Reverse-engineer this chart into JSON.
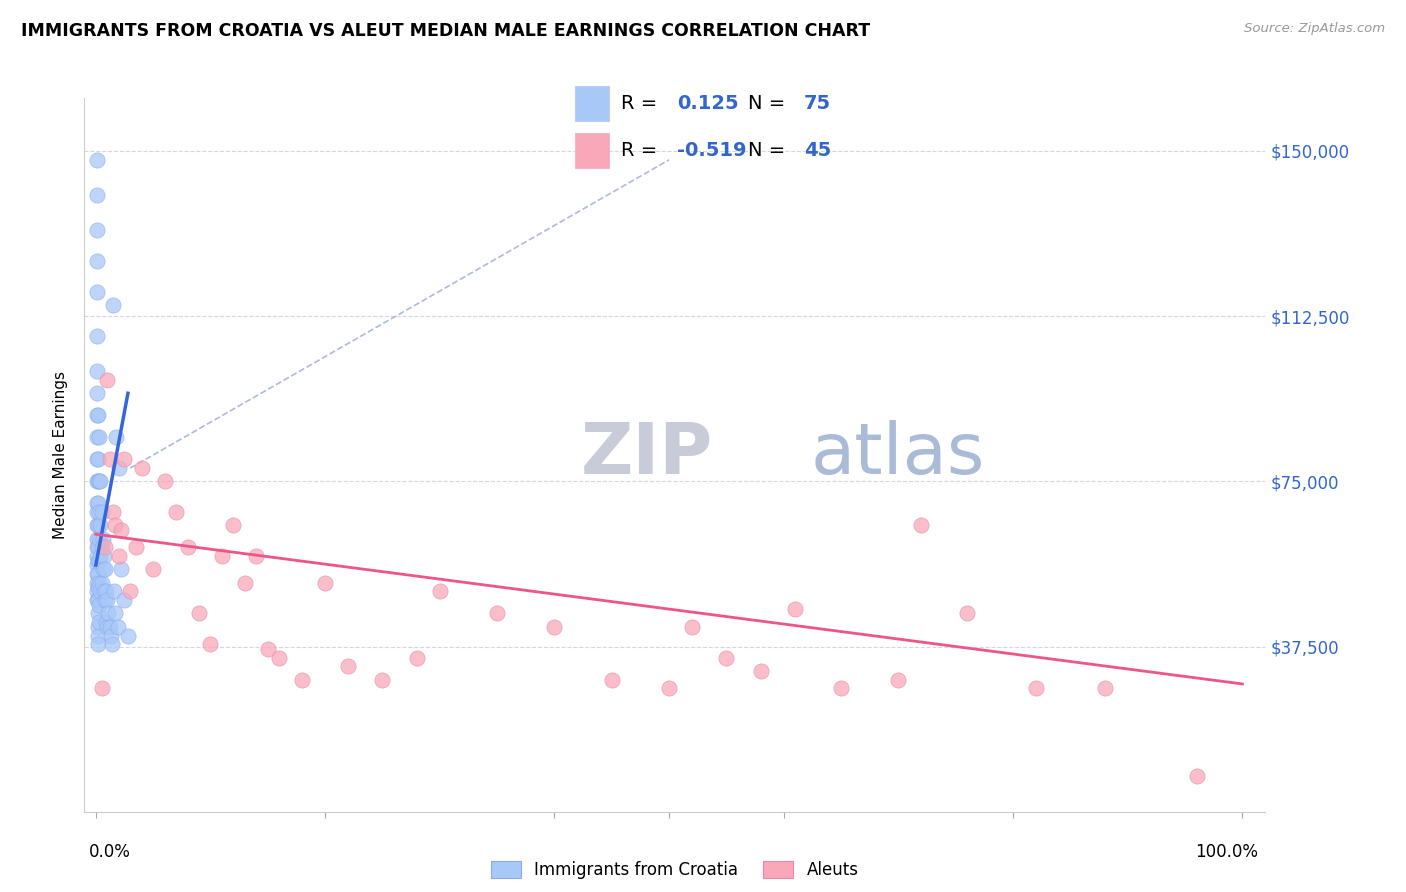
{
  "title": "IMMIGRANTS FROM CROATIA VS ALEUT MEDIAN MALE EARNINGS CORRELATION CHART",
  "source": "Source: ZipAtlas.com",
  "ylabel": "Median Male Earnings",
  "yticks": [
    0,
    37500,
    75000,
    112500,
    150000
  ],
  "xlim": [
    -0.01,
    1.02
  ],
  "ylim": [
    0,
    162000
  ],
  "croatia_color": "#a8c8f8",
  "croatia_edge_color": "#88aaee",
  "aleut_color": "#f8a8b8",
  "aleut_edge_color": "#e888a8",
  "croatia_line_color": "#3366dd",
  "aleut_line_color": "#ee5588",
  "dashed_line_color": "#99aace",
  "R_croatia": "0.125",
  "N_croatia": "75",
  "R_aleut": "-0.519",
  "N_aleut": "45",
  "watermark_zip_color": "#c8ccd8",
  "watermark_atlas_color": "#aabbd8",
  "croatia_scatter_x": [
    0.001,
    0.001,
    0.001,
    0.001,
    0.001,
    0.001,
    0.001,
    0.001,
    0.001,
    0.001,
    0.001,
    0.001,
    0.001,
    0.001,
    0.001,
    0.001,
    0.001,
    0.001,
    0.001,
    0.001,
    0.001,
    0.001,
    0.001,
    0.002,
    0.002,
    0.002,
    0.002,
    0.002,
    0.002,
    0.002,
    0.002,
    0.002,
    0.002,
    0.002,
    0.002,
    0.002,
    0.002,
    0.003,
    0.003,
    0.003,
    0.003,
    0.003,
    0.003,
    0.003,
    0.003,
    0.004,
    0.004,
    0.004,
    0.004,
    0.005,
    0.005,
    0.005,
    0.006,
    0.006,
    0.007,
    0.007,
    0.008,
    0.008,
    0.009,
    0.009,
    0.01,
    0.01,
    0.011,
    0.012,
    0.013,
    0.014,
    0.015,
    0.016,
    0.017,
    0.018,
    0.019,
    0.02,
    0.022,
    0.025,
    0.028
  ],
  "croatia_scatter_y": [
    148000,
    140000,
    132000,
    125000,
    118000,
    108000,
    100000,
    95000,
    90000,
    85000,
    80000,
    75000,
    70000,
    68000,
    65000,
    62000,
    60000,
    58000,
    56000,
    54000,
    52000,
    50000,
    48000,
    90000,
    80000,
    75000,
    70000,
    65000,
    60000,
    57000,
    54000,
    51000,
    48000,
    45000,
    42000,
    40000,
    38000,
    85000,
    75000,
    68000,
    62000,
    57000,
    52000,
    47000,
    43000,
    75000,
    65000,
    58000,
    50000,
    68000,
    60000,
    52000,
    62000,
    55000,
    58000,
    50000,
    55000,
    48000,
    50000,
    43000,
    48000,
    42000,
    45000,
    42000,
    40000,
    38000,
    115000,
    50000,
    45000,
    85000,
    42000,
    78000,
    55000,
    48000,
    40000
  ],
  "aleut_scatter_x": [
    0.005,
    0.008,
    0.01,
    0.012,
    0.015,
    0.017,
    0.02,
    0.022,
    0.025,
    0.03,
    0.035,
    0.04,
    0.05,
    0.06,
    0.07,
    0.08,
    0.09,
    0.1,
    0.11,
    0.12,
    0.13,
    0.14,
    0.15,
    0.16,
    0.18,
    0.2,
    0.22,
    0.25,
    0.28,
    0.3,
    0.35,
    0.4,
    0.45,
    0.5,
    0.52,
    0.55,
    0.58,
    0.61,
    0.65,
    0.7,
    0.72,
    0.76,
    0.82,
    0.88,
    0.96
  ],
  "aleut_scatter_y": [
    28000,
    60000,
    98000,
    80000,
    68000,
    65000,
    58000,
    64000,
    80000,
    50000,
    60000,
    78000,
    55000,
    75000,
    68000,
    60000,
    45000,
    38000,
    58000,
    65000,
    52000,
    58000,
    37000,
    35000,
    30000,
    52000,
    33000,
    30000,
    35000,
    50000,
    45000,
    42000,
    30000,
    28000,
    42000,
    35000,
    32000,
    46000,
    28000,
    30000,
    65000,
    45000,
    28000,
    28000,
    8000
  ],
  "croatia_trend_x": [
    0.0,
    0.028
  ],
  "croatia_trend_y": [
    56000,
    95000
  ],
  "aleut_trend_x": [
    0.0,
    1.0
  ],
  "aleut_trend_y": [
    63000,
    29000
  ],
  "dashed_trend_x": [
    0.03,
    0.5
  ],
  "dashed_trend_y": [
    78000,
    148000
  ]
}
